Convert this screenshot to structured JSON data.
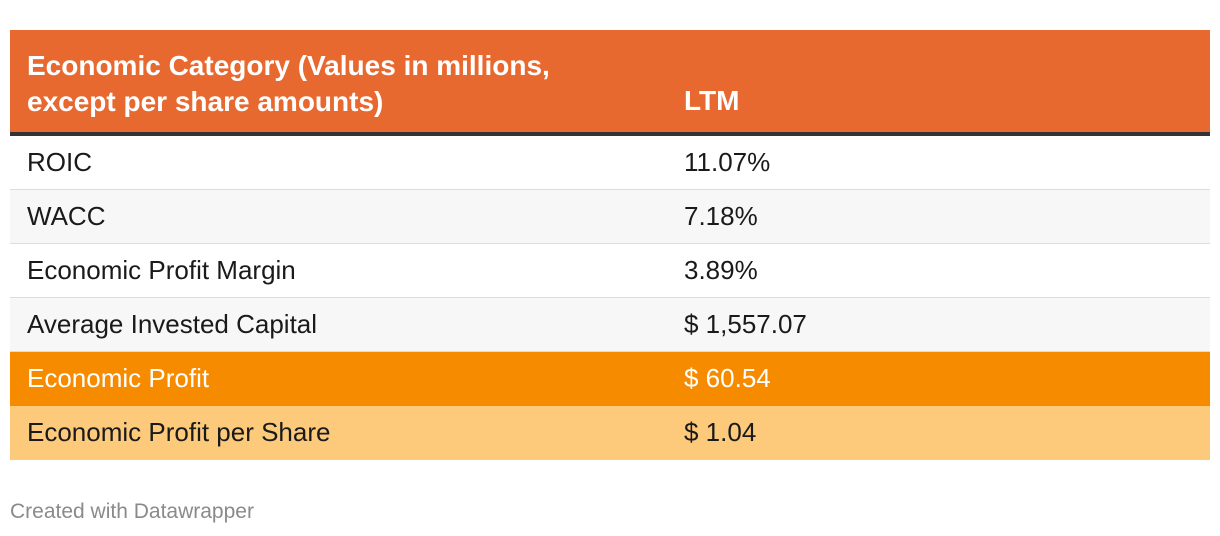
{
  "table": {
    "header": {
      "category": "Economic Category (Values in millions,\nexcept per share amounts)",
      "ltm": "LTM"
    },
    "rows": [
      {
        "label": "ROIC",
        "value": "11.07%"
      },
      {
        "label": "WACC",
        "value": "7.18%"
      },
      {
        "label": "Economic Profit Margin",
        "value": "3.89%"
      },
      {
        "label": "Average Invested Capital",
        "value": "$ 1,557.07"
      },
      {
        "label": "Economic Profit",
        "value": "$ 60.54"
      },
      {
        "label": "Economic Profit per Share",
        "value": "$ 1.04"
      }
    ]
  },
  "footer": "Created with Datawrapper",
  "colors": {
    "header_bg": "#e8692f",
    "highlight_orange": "#f78b00",
    "highlight_light": "#fdc97b"
  },
  "chart_data": {
    "type": "table",
    "columns": [
      "Economic Category (Values in millions, except per share amounts)",
      "LTM"
    ],
    "rows": [
      [
        "ROIC",
        "11.07%"
      ],
      [
        "WACC",
        "7.18%"
      ],
      [
        "Economic Profit Margin",
        "3.89%"
      ],
      [
        "Average Invested Capital",
        "$ 1,557.07"
      ],
      [
        "Economic Profit",
        "$ 60.54"
      ],
      [
        "Economic Profit per Share",
        "$ 1.04"
      ]
    ]
  }
}
